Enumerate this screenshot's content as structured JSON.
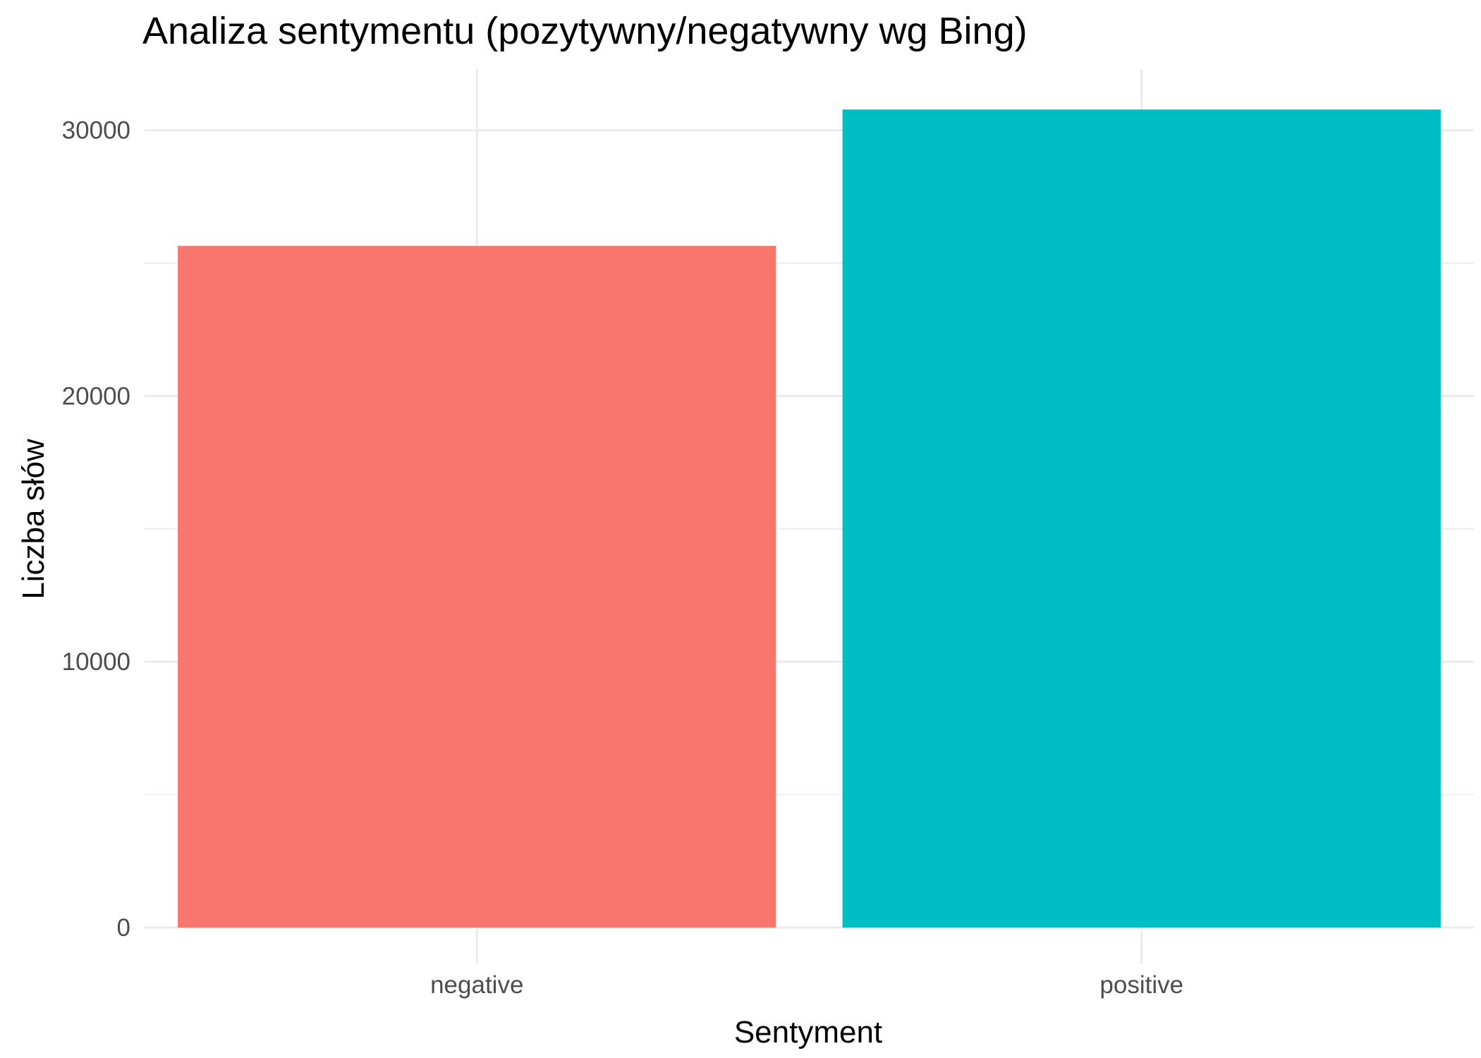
{
  "chart_data": {
    "type": "bar",
    "title": "Analiza sentymentu (pozytywny/negatywny wg Bing)",
    "xlabel": "Sentyment",
    "ylabel": "Liczba słów",
    "categories": [
      "negative",
      "positive"
    ],
    "values": [
      25650,
      30780
    ],
    "colors": [
      "#F8766D",
      "#00BFC4"
    ],
    "ylim": [
      0,
      32300
    ],
    "yticks": [
      0,
      10000,
      20000,
      30000
    ],
    "yticks_minor": [
      5000,
      15000,
      25000
    ],
    "grid": true,
    "legend": "none"
  }
}
